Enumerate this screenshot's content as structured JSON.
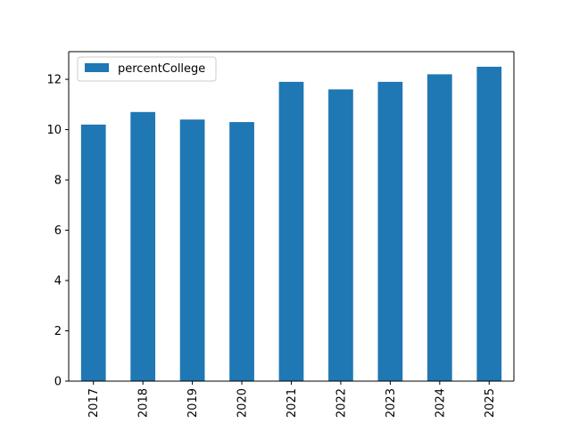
{
  "chart_data": {
    "type": "bar",
    "title": "",
    "xlabel": "",
    "ylabel": "",
    "categories": [
      "2017",
      "2018",
      "2019",
      "2020",
      "2021",
      "2022",
      "2023",
      "2024",
      "2025"
    ],
    "series": [
      {
        "name": "percentCollege",
        "color": "#1f77b4",
        "values": [
          10.2,
          10.7,
          10.4,
          10.3,
          11.9,
          11.6,
          11.9,
          12.2,
          12.5
        ]
      }
    ],
    "ylim": [
      0,
      13.1
    ],
    "yticks": [
      "0",
      "2",
      "4",
      "6",
      "8",
      "10",
      "12"
    ],
    "grid": false,
    "legend_position": "top-left",
    "x_tick_rotation": "vertical"
  }
}
